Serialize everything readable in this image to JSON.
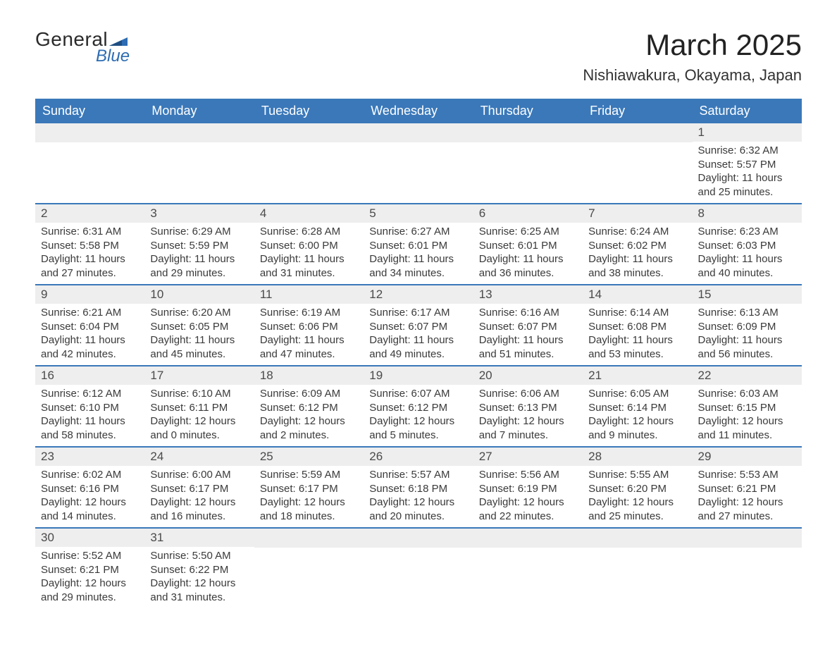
{
  "brand": {
    "name1": "General",
    "name2": "Blue",
    "flag_color": "#2d6cb3"
  },
  "title": "March 2025",
  "location": "Nishiawakura, Okayama, Japan",
  "colors": {
    "header_bg": "#3a78b9",
    "header_fg": "#ffffff",
    "daynum_bg": "#eeeeee",
    "row_border": "#3a78b9",
    "text": "#3a3a3a",
    "page_bg": "#ffffff"
  },
  "typography": {
    "title_fontsize": 42,
    "location_fontsize": 22,
    "header_fontsize": 18,
    "daynum_fontsize": 17,
    "body_fontsize": 15
  },
  "weekday_headers": [
    "Sunday",
    "Monday",
    "Tuesday",
    "Wednesday",
    "Thursday",
    "Friday",
    "Saturday"
  ],
  "weeks": [
    [
      null,
      null,
      null,
      null,
      null,
      null,
      {
        "n": "1",
        "sunrise": "Sunrise: 6:32 AM",
        "sunset": "Sunset: 5:57 PM",
        "daylight": "Daylight: 11 hours and 25 minutes."
      }
    ],
    [
      {
        "n": "2",
        "sunrise": "Sunrise: 6:31 AM",
        "sunset": "Sunset: 5:58 PM",
        "daylight": "Daylight: 11 hours and 27 minutes."
      },
      {
        "n": "3",
        "sunrise": "Sunrise: 6:29 AM",
        "sunset": "Sunset: 5:59 PM",
        "daylight": "Daylight: 11 hours and 29 minutes."
      },
      {
        "n": "4",
        "sunrise": "Sunrise: 6:28 AM",
        "sunset": "Sunset: 6:00 PM",
        "daylight": "Daylight: 11 hours and 31 minutes."
      },
      {
        "n": "5",
        "sunrise": "Sunrise: 6:27 AM",
        "sunset": "Sunset: 6:01 PM",
        "daylight": "Daylight: 11 hours and 34 minutes."
      },
      {
        "n": "6",
        "sunrise": "Sunrise: 6:25 AM",
        "sunset": "Sunset: 6:01 PM",
        "daylight": "Daylight: 11 hours and 36 minutes."
      },
      {
        "n": "7",
        "sunrise": "Sunrise: 6:24 AM",
        "sunset": "Sunset: 6:02 PM",
        "daylight": "Daylight: 11 hours and 38 minutes."
      },
      {
        "n": "8",
        "sunrise": "Sunrise: 6:23 AM",
        "sunset": "Sunset: 6:03 PM",
        "daylight": "Daylight: 11 hours and 40 minutes."
      }
    ],
    [
      {
        "n": "9",
        "sunrise": "Sunrise: 6:21 AM",
        "sunset": "Sunset: 6:04 PM",
        "daylight": "Daylight: 11 hours and 42 minutes."
      },
      {
        "n": "10",
        "sunrise": "Sunrise: 6:20 AM",
        "sunset": "Sunset: 6:05 PM",
        "daylight": "Daylight: 11 hours and 45 minutes."
      },
      {
        "n": "11",
        "sunrise": "Sunrise: 6:19 AM",
        "sunset": "Sunset: 6:06 PM",
        "daylight": "Daylight: 11 hours and 47 minutes."
      },
      {
        "n": "12",
        "sunrise": "Sunrise: 6:17 AM",
        "sunset": "Sunset: 6:07 PM",
        "daylight": "Daylight: 11 hours and 49 minutes."
      },
      {
        "n": "13",
        "sunrise": "Sunrise: 6:16 AM",
        "sunset": "Sunset: 6:07 PM",
        "daylight": "Daylight: 11 hours and 51 minutes."
      },
      {
        "n": "14",
        "sunrise": "Sunrise: 6:14 AM",
        "sunset": "Sunset: 6:08 PM",
        "daylight": "Daylight: 11 hours and 53 minutes."
      },
      {
        "n": "15",
        "sunrise": "Sunrise: 6:13 AM",
        "sunset": "Sunset: 6:09 PM",
        "daylight": "Daylight: 11 hours and 56 minutes."
      }
    ],
    [
      {
        "n": "16",
        "sunrise": "Sunrise: 6:12 AM",
        "sunset": "Sunset: 6:10 PM",
        "daylight": "Daylight: 11 hours and 58 minutes."
      },
      {
        "n": "17",
        "sunrise": "Sunrise: 6:10 AM",
        "sunset": "Sunset: 6:11 PM",
        "daylight": "Daylight: 12 hours and 0 minutes."
      },
      {
        "n": "18",
        "sunrise": "Sunrise: 6:09 AM",
        "sunset": "Sunset: 6:12 PM",
        "daylight": "Daylight: 12 hours and 2 minutes."
      },
      {
        "n": "19",
        "sunrise": "Sunrise: 6:07 AM",
        "sunset": "Sunset: 6:12 PM",
        "daylight": "Daylight: 12 hours and 5 minutes."
      },
      {
        "n": "20",
        "sunrise": "Sunrise: 6:06 AM",
        "sunset": "Sunset: 6:13 PM",
        "daylight": "Daylight: 12 hours and 7 minutes."
      },
      {
        "n": "21",
        "sunrise": "Sunrise: 6:05 AM",
        "sunset": "Sunset: 6:14 PM",
        "daylight": "Daylight: 12 hours and 9 minutes."
      },
      {
        "n": "22",
        "sunrise": "Sunrise: 6:03 AM",
        "sunset": "Sunset: 6:15 PM",
        "daylight": "Daylight: 12 hours and 11 minutes."
      }
    ],
    [
      {
        "n": "23",
        "sunrise": "Sunrise: 6:02 AM",
        "sunset": "Sunset: 6:16 PM",
        "daylight": "Daylight: 12 hours and 14 minutes."
      },
      {
        "n": "24",
        "sunrise": "Sunrise: 6:00 AM",
        "sunset": "Sunset: 6:17 PM",
        "daylight": "Daylight: 12 hours and 16 minutes."
      },
      {
        "n": "25",
        "sunrise": "Sunrise: 5:59 AM",
        "sunset": "Sunset: 6:17 PM",
        "daylight": "Daylight: 12 hours and 18 minutes."
      },
      {
        "n": "26",
        "sunrise": "Sunrise: 5:57 AM",
        "sunset": "Sunset: 6:18 PM",
        "daylight": "Daylight: 12 hours and 20 minutes."
      },
      {
        "n": "27",
        "sunrise": "Sunrise: 5:56 AM",
        "sunset": "Sunset: 6:19 PM",
        "daylight": "Daylight: 12 hours and 22 minutes."
      },
      {
        "n": "28",
        "sunrise": "Sunrise: 5:55 AM",
        "sunset": "Sunset: 6:20 PM",
        "daylight": "Daylight: 12 hours and 25 minutes."
      },
      {
        "n": "29",
        "sunrise": "Sunrise: 5:53 AM",
        "sunset": "Sunset: 6:21 PM",
        "daylight": "Daylight: 12 hours and 27 minutes."
      }
    ],
    [
      {
        "n": "30",
        "sunrise": "Sunrise: 5:52 AM",
        "sunset": "Sunset: 6:21 PM",
        "daylight": "Daylight: 12 hours and 29 minutes."
      },
      {
        "n": "31",
        "sunrise": "Sunrise: 5:50 AM",
        "sunset": "Sunset: 6:22 PM",
        "daylight": "Daylight: 12 hours and 31 minutes."
      },
      null,
      null,
      null,
      null,
      null
    ]
  ]
}
